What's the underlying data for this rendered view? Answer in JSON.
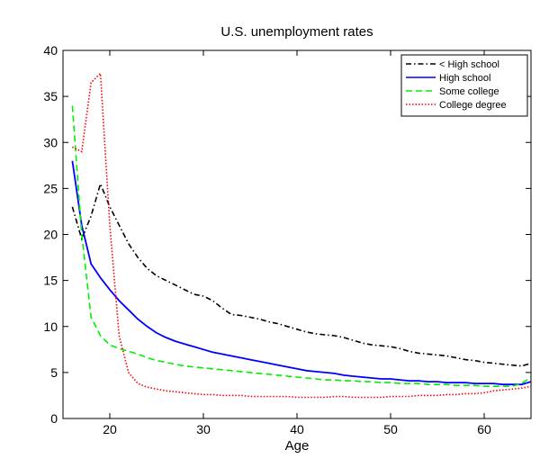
{
  "chart_data": {
    "type": "line",
    "title": "U.S. unemployment rates",
    "xlabel": "Age",
    "ylabel": "",
    "xlim": [
      15,
      65
    ],
    "ylim": [
      0,
      40
    ],
    "xticks": [
      20,
      30,
      40,
      50,
      60
    ],
    "yticks": [
      0,
      5,
      10,
      15,
      20,
      25,
      30,
      35,
      40
    ],
    "grid": false,
    "legend_position": "top-right",
    "series": [
      {
        "name": "< High school",
        "color": "#000000",
        "dash": "dash-dot",
        "x": [
          16,
          17,
          18,
          19,
          20,
          21,
          22,
          23,
          24,
          25,
          26,
          27,
          28,
          29,
          30,
          31,
          32,
          33,
          34,
          35,
          36,
          37,
          38,
          39,
          40,
          41,
          42,
          43,
          44,
          45,
          46,
          47,
          48,
          49,
          50,
          51,
          52,
          53,
          54,
          55,
          56,
          57,
          58,
          59,
          60,
          61,
          62,
          63,
          64,
          65
        ],
        "values": [
          23,
          19.5,
          22,
          25.5,
          23,
          21,
          19,
          17.5,
          16.3,
          15.5,
          15,
          14.5,
          14,
          13.5,
          13.3,
          12.8,
          12,
          11.3,
          11.2,
          11,
          10.8,
          10.5,
          10.3,
          10,
          9.7,
          9.4,
          9.2,
          9.1,
          9,
          8.8,
          8.5,
          8.2,
          8,
          7.9,
          7.8,
          7.6,
          7.3,
          7.1,
          7,
          6.9,
          6.8,
          6.6,
          6.4,
          6.3,
          6.1,
          6,
          5.9,
          5.8,
          5.7,
          6
        ]
      },
      {
        "name": "High school",
        "color": "#0000ff",
        "dash": "solid",
        "x": [
          16,
          17,
          18,
          19,
          20,
          21,
          22,
          23,
          24,
          25,
          26,
          27,
          28,
          29,
          30,
          31,
          32,
          33,
          34,
          35,
          36,
          37,
          38,
          39,
          40,
          41,
          42,
          43,
          44,
          45,
          46,
          47,
          48,
          49,
          50,
          51,
          52,
          53,
          54,
          55,
          56,
          57,
          58,
          59,
          60,
          61,
          62,
          63,
          64,
          65
        ],
        "values": [
          28,
          21,
          16.8,
          15.3,
          14,
          12.8,
          11.8,
          10.8,
          10,
          9.3,
          8.8,
          8.4,
          8.1,
          7.8,
          7.5,
          7.2,
          7,
          6.8,
          6.6,
          6.4,
          6.2,
          6,
          5.8,
          5.6,
          5.4,
          5.2,
          5.1,
          5,
          4.9,
          4.7,
          4.6,
          4.5,
          4.4,
          4.3,
          4.3,
          4.2,
          4.1,
          4.1,
          4,
          4,
          3.9,
          3.9,
          3.9,
          3.8,
          3.8,
          3.8,
          3.7,
          3.7,
          3.7,
          4
        ]
      },
      {
        "name": "Some college",
        "color": "#00ee00",
        "dash": "dashed",
        "x": [
          16,
          17,
          18,
          19,
          20,
          21,
          22,
          23,
          24,
          25,
          26,
          27,
          28,
          29,
          30,
          31,
          32,
          33,
          34,
          35,
          36,
          37,
          38,
          39,
          40,
          41,
          42,
          43,
          44,
          45,
          46,
          47,
          48,
          49,
          50,
          51,
          52,
          53,
          54,
          55,
          56,
          57,
          58,
          59,
          60,
          61,
          62,
          63,
          64,
          65
        ],
        "values": [
          34,
          20,
          11,
          9,
          8,
          7.6,
          7.3,
          7,
          6.6,
          6.3,
          6.1,
          5.9,
          5.7,
          5.6,
          5.5,
          5.4,
          5.3,
          5.2,
          5.1,
          5,
          4.9,
          4.8,
          4.7,
          4.6,
          4.5,
          4.4,
          4.3,
          4.2,
          4.2,
          4.1,
          4.1,
          4,
          4,
          3.9,
          3.9,
          3.8,
          3.8,
          3.8,
          3.7,
          3.7,
          3.7,
          3.6,
          3.6,
          3.6,
          3.5,
          3.5,
          3.5,
          3.5,
          3.8,
          4.5
        ]
      },
      {
        "name": "College degree",
        "color": "#ff0000",
        "dash": "dotted",
        "x": [
          16,
          17,
          18,
          19,
          20,
          21,
          22,
          23,
          24,
          25,
          26,
          27,
          28,
          29,
          30,
          31,
          32,
          33,
          34,
          35,
          36,
          37,
          38,
          39,
          40,
          41,
          42,
          43,
          44,
          45,
          46,
          47,
          48,
          49,
          50,
          51,
          52,
          53,
          54,
          55,
          56,
          57,
          58,
          59,
          60,
          61,
          62,
          63,
          64,
          65
        ],
        "values": [
          29.5,
          29,
          36.5,
          37.5,
          21,
          9,
          5,
          3.8,
          3.4,
          3.2,
          3,
          2.9,
          2.8,
          2.7,
          2.6,
          2.6,
          2.5,
          2.5,
          2.5,
          2.4,
          2.4,
          2.4,
          2.4,
          2.4,
          2.3,
          2.3,
          2.3,
          2.3,
          2.4,
          2.4,
          2.3,
          2.3,
          2.3,
          2.3,
          2.4,
          2.4,
          2.4,
          2.5,
          2.5,
          2.5,
          2.6,
          2.6,
          2.7,
          2.7,
          2.8,
          3,
          3.1,
          3.2,
          3.3,
          3.5
        ]
      }
    ]
  }
}
